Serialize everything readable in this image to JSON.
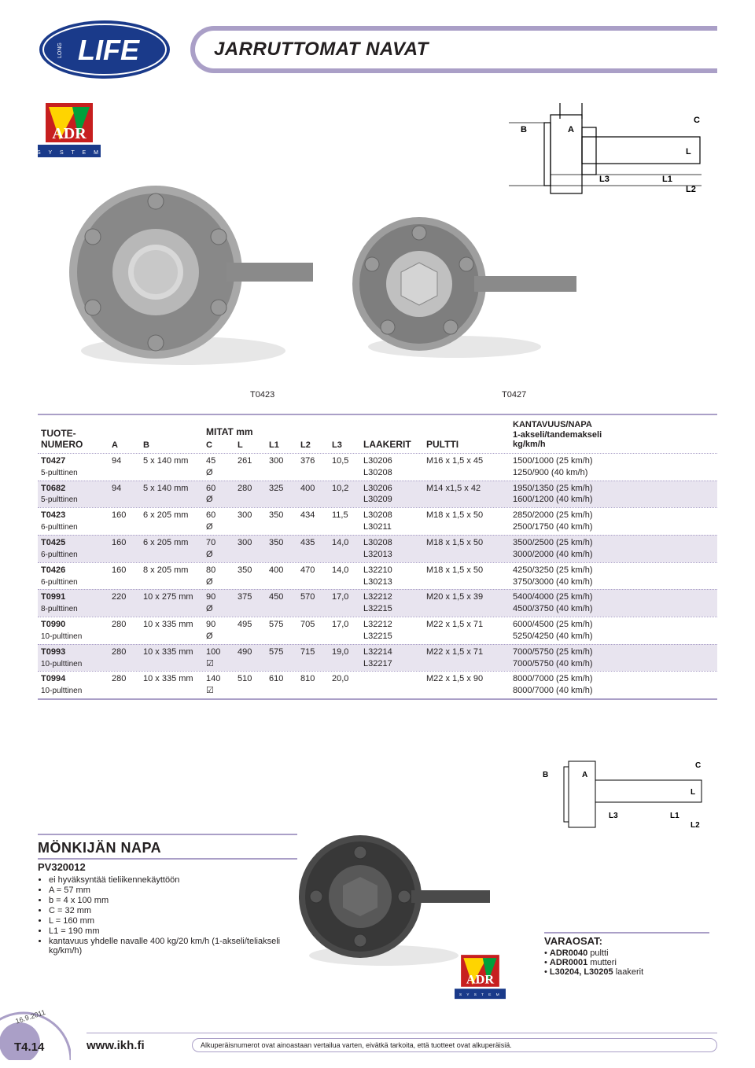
{
  "header": {
    "title": "JARRUTTOMAT NAVAT"
  },
  "hub_labels": {
    "left": "T0423",
    "right": "T0427"
  },
  "diagram_labels": {
    "A": "A",
    "B": "B",
    "C": "C",
    "L": "L",
    "L1": "L1",
    "L2": "L2",
    "L3": "L3"
  },
  "table": {
    "header": {
      "code": "TUOTE-\nNUMERO",
      "mitat": "MITAT mm",
      "laakerit": "LAAKERIT",
      "pultti": "PULTTI",
      "kant": "KANTAVUUS/NAPA\n1-akseli/tandemakseli\nkg/km/h",
      "cols": [
        "A",
        "B",
        "C",
        "L",
        "L1",
        "L2",
        "L3"
      ]
    },
    "rows": [
      {
        "code": "T0427",
        "sub": "5-pulttinen",
        "A": "94",
        "B": "5 x 140 mm",
        "C": "45\nØ",
        "L": "261",
        "L1": "300",
        "L2": "376",
        "L3": "10,5",
        "laak": "L30206\nL30208",
        "pul": "M16 x 1,5 x 45",
        "kant": "1500/1000 (25 km/h)\n1250/900 (40 km/h)",
        "shade": false
      },
      {
        "code": "T0682",
        "sub": "5-pulttinen",
        "A": "94",
        "B": "5 x 140 mm",
        "C": "60\nØ",
        "L": "280",
        "L1": "325",
        "L2": "400",
        "L3": "10,2",
        "laak": "L30206\nL30209",
        "pul": "M14 x1,5 x 42",
        "kant": "1950/1350 (25 km/h)\n1600/1200 (40 km/h)",
        "shade": true
      },
      {
        "code": "T0423",
        "sub": "6-pulttinen",
        "A": "160",
        "B": "6 x 205 mm",
        "C": "60\nØ",
        "L": "300",
        "L1": "350",
        "L2": "434",
        "L3": "11,5",
        "laak": "L30208\nL30211",
        "pul": "M18 x 1,5 x 50",
        "kant": "2850/2000 (25 km/h)\n2500/1750 (40 km/h)",
        "shade": false
      },
      {
        "code": "T0425",
        "sub": "6-pulttinen",
        "A": "160",
        "B": "6 x 205 mm",
        "C": "70\nØ",
        "L": "300",
        "L1": "350",
        "L2": "435",
        "L3": "14,0",
        "laak": "L30208\nL32013",
        "pul": "M18 x 1,5 x 50",
        "kant": "3500/2500 (25 km/h)\n3000/2000 (40 km/h)",
        "shade": true
      },
      {
        "code": "T0426",
        "sub": "6-pulttinen",
        "A": "160",
        "B": "8 x 205 mm",
        "C": "80\nØ",
        "L": "350",
        "L1": "400",
        "L2": "470",
        "L3": "14,0",
        "laak": "L32210\nL30213",
        "pul": "M18 x 1,5 x 50",
        "kant": "4250/3250 (25 km/h)\n3750/3000 (40 km/h)",
        "shade": false
      },
      {
        "code": "T0991",
        "sub": "8-pulttinen",
        "A": "220",
        "B": "10 x 275 mm",
        "C": "90\nØ",
        "L": "375",
        "L1": "450",
        "L2": "570",
        "L3": "17,0",
        "laak": "L32212\nL32215",
        "pul": "M20 x 1,5 x 39",
        "kant": "5400/4000 (25 km/h)\n4500/3750 (40 km/h)",
        "shade": true
      },
      {
        "code": "T0990",
        "sub": "10-pulttinen",
        "A": "280",
        "B": "10 x 335 mm",
        "C": "90\nØ",
        "L": "495",
        "L1": "575",
        "L2": "705",
        "L3": "17,0",
        "laak": "L32212\nL32215",
        "pul": "M22 x 1,5 x 71",
        "kant": "6000/4500 (25 km/h)\n5250/4250 (40 km/h)",
        "shade": false
      },
      {
        "code": "T0993",
        "sub": "10-pulttinen",
        "A": "280",
        "B": "10 x 335 mm",
        "C": "100\n☑",
        "L": "490",
        "L1": "575",
        "L2": "715",
        "L3": "19,0",
        "laak": "L32214\nL32217",
        "pul": "M22 x 1,5 x 71",
        "kant": "7000/5750 (25 km/h)\n7000/5750 (40 km/h)",
        "shade": true
      },
      {
        "code": "T0994",
        "sub": "10-pulttinen",
        "A": "280",
        "B": "10 x 335 mm",
        "C": "140\n☑",
        "L": "510",
        "L1": "610",
        "L2": "810",
        "L3": "20,0",
        "laak": "",
        "pul": "M22 x 1,5 x 90",
        "kant": "8000/7000 (25 km/h)\n8000/7000 (40 km/h)",
        "shade": false
      }
    ]
  },
  "monkija": {
    "title": "MÖNKIJÄN NAPA",
    "code": "PV320012",
    "items": [
      "ei hyväksyntää tieliikennekäyttöön",
      "A = 57 mm",
      "b = 4 x 100 mm",
      "C = 32 mm",
      "L = 160 mm",
      "L1 = 190 mm",
      "kantavuus yhdelle navalle 400 kg/20 km/h (1-akseli/teliakseli kg/km/h)"
    ]
  },
  "varaosat": {
    "title": "VARAOSAT:",
    "items": [
      "ADR0040 pultti",
      "ADR0001 mutteri",
      "L30204, L30205 laakerit"
    ]
  },
  "footer": {
    "url": "www.ikh.fi",
    "note": "Alkuperäisnumerot ovat ainoastaan vertailua varten, eivätkä tarkoita, että tuotteet ovat alkuperäisiä.",
    "page": "T4.14",
    "date": "16.9.2011"
  },
  "colors": {
    "accent": "#aa9fc7",
    "logo_blue": "#1a3a8a",
    "adr_red": "#c71f1f",
    "adr_yellow": "#ffd400",
    "adr_green": "#00a03c"
  }
}
